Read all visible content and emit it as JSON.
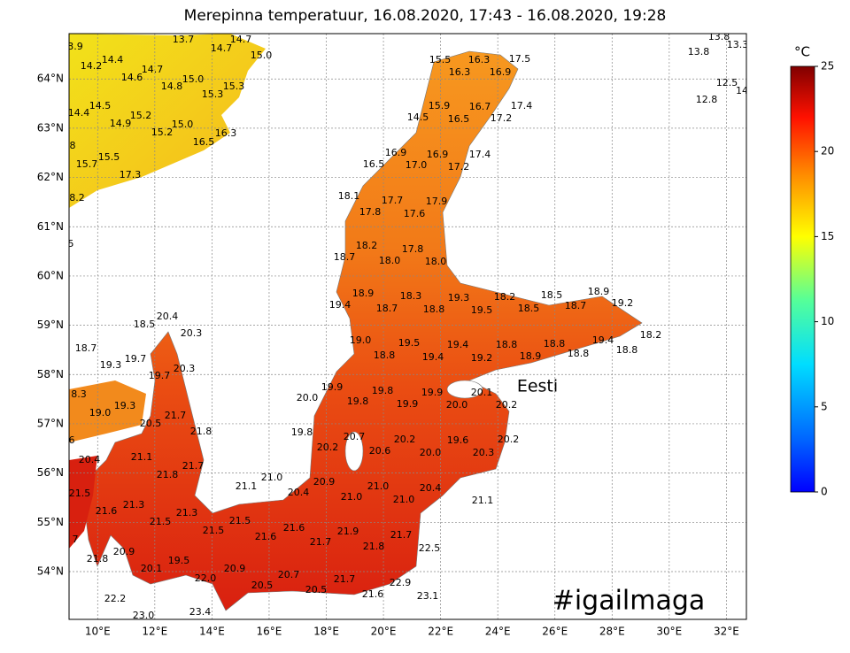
{
  "title": "Merepinna temperatuur, 16.08.2020, 17:43 - 16.08.2020, 19:28",
  "map": {
    "xlim": [
      9.0,
      32.7
    ],
    "ylim": [
      53.03,
      64.92
    ],
    "xticks": [
      {
        "value": 10,
        "label": "10°E"
      },
      {
        "value": 12,
        "label": "12°E"
      },
      {
        "value": 14,
        "label": "14°E"
      },
      {
        "value": 16,
        "label": "16°E"
      },
      {
        "value": 18,
        "label": "18°E"
      },
      {
        "value": 20,
        "label": "20°E"
      },
      {
        "value": 22,
        "label": "22°E"
      },
      {
        "value": 24,
        "label": "24°E"
      },
      {
        "value": 26,
        "label": "26°E"
      },
      {
        "value": 28,
        "label": "28°E"
      },
      {
        "value": 30,
        "label": "30°E"
      },
      {
        "value": 32,
        "label": "32°E"
      }
    ],
    "yticks": [
      {
        "value": 54,
        "label": "54°N"
      },
      {
        "value": 55,
        "label": "55°N"
      },
      {
        "value": 56,
        "label": "56°N"
      },
      {
        "value": 57,
        "label": "57°N"
      },
      {
        "value": 58,
        "label": "58°N"
      },
      {
        "value": 59,
        "label": "59°N"
      },
      {
        "value": 60,
        "label": "60°N"
      },
      {
        "value": 61,
        "label": "61°N"
      },
      {
        "value": 62,
        "label": "62°N"
      },
      {
        "value": 63,
        "label": "63°N"
      },
      {
        "value": 64,
        "label": "64°N"
      }
    ],
    "labels": [
      "3.9",
      "13.7",
      "14.7",
      "14.7",
      "15.0",
      "14.2",
      "14.4",
      "14.6",
      "14.7",
      "15.0",
      "14.8",
      "15.3",
      "15.3",
      "14.4",
      "14.5",
      "15.2",
      "14.9",
      "15.0",
      "15.2",
      "16.3",
      "16.5",
      "8",
      "15.5",
      "15.7",
      "17.3",
      "8.2",
      "5",
      "13.8",
      "13.3",
      "13.8",
      "12.5",
      "14",
      "12.8",
      "15.5",
      "16.3",
      "17.5",
      "16.3",
      "16.9",
      "15.9",
      "16.7",
      "17.4",
      "14.5",
      "16.5",
      "17.2",
      "16.9",
      "16.9",
      "17.4",
      "16.5",
      "17.0",
      "17.2",
      "18.1",
      "17.7",
      "17.9",
      "17.8",
      "17.6",
      "18.2",
      "17.8",
      "18.7",
      "18.0",
      "18.0",
      "18.9",
      "18.3",
      "19.3",
      "18.2",
      "18.5",
      "18.9",
      "19.4",
      "18.7",
      "18.8",
      "19.5",
      "18.5",
      "18.7",
      "19.2",
      "18.2",
      "19.4",
      "18.8",
      "18.8",
      "18.8",
      "18.9",
      "18.8",
      "19.0",
      "19.5",
      "19.4",
      "18.8",
      "19.4",
      "19.2",
      "19.9",
      "19.8",
      "19.9",
      "20.1",
      "20.0",
      "19.8",
      "19.9",
      "20.0",
      "20.2",
      "19.8",
      "20.7",
      "20.2",
      "19.6",
      "20.2",
      "20.2",
      "20.6",
      "20.0",
      "20.3",
      "20.9",
      "21.0",
      "20.4",
      "21.1",
      "21.0",
      "20.4",
      "21.0",
      "21.0",
      "21.1",
      "18.5",
      "20.4",
      "20.3",
      "18.7",
      "19.7",
      "19.3",
      "20.3",
      "19.7",
      "8.3",
      "19.3",
      "19.0",
      "21.7",
      "20.5",
      "21.8",
      "6",
      "20.4",
      "21.1",
      "21.7",
      "21.8",
      "21.5",
      "21.3",
      "21.6",
      "21.3",
      "21.5",
      "7",
      "21.5",
      "21.5",
      "21.6",
      "21.6",
      "21.9",
      "21.7",
      "21.8",
      "21.7",
      "22.5",
      "20.9",
      "21.8",
      "19.5",
      "20.1",
      "20.9",
      "22.0",
      "20.7",
      "20.5",
      "21.7",
      "22.9",
      "20.5",
      "21.6",
      "23.1",
      "22.2",
      "23.0",
      "23.4"
    ],
    "place_label": "Eesti",
    "hashtag": "#igailmaga"
  },
  "colorbar": {
    "unit": "°C",
    "range": [
      0,
      25
    ],
    "ticks": [
      0,
      5,
      10,
      15,
      20,
      25
    ]
  }
}
